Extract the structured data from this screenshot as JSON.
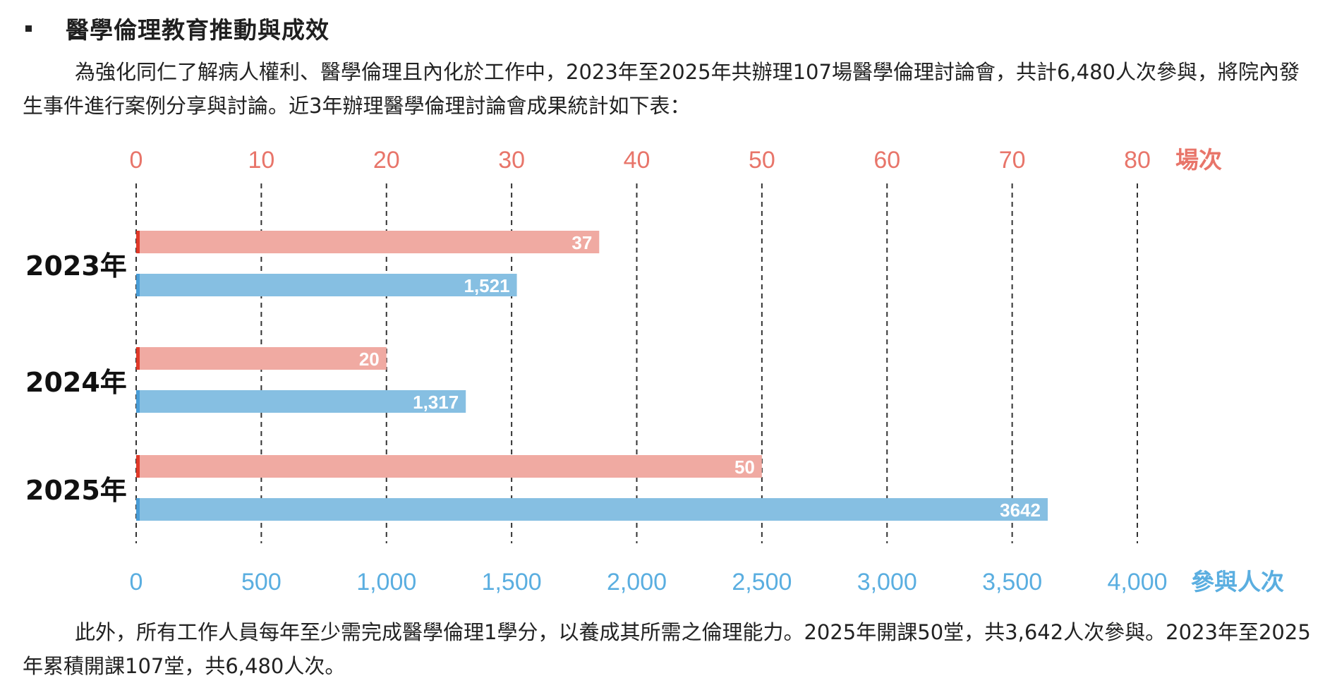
{
  "heading": "醫學倫理教育推動與成效",
  "intro": "為強化同仁了解病人權利、醫學倫理且內化於工作中，2023年至2025年共辦理107場醫學倫理討論會，共計6,480人次參與，將院內發生事件進行案例分享與討論。近3年辦理醫學倫理討論會成果統計如下表：",
  "footer": "此外，所有工作人員每年至少需完成醫學倫理1學分，以養成其所需之倫理能力。2025年開課50堂，共3,642人次參與。2023年至2025年累積開課107堂，共6,480人次。",
  "colors": {
    "sessions_bar": "#f0aaa2",
    "sessions_marker": "#e03a2a",
    "attendance_bar": "#86bfe2",
    "attendance_marker": "#4a9dd6",
    "top_axis": "#e8756a",
    "bottom_axis": "#5aaee0"
  },
  "chart_data": {
    "type": "bar",
    "orientation": "horizontal",
    "categories": [
      "2023年",
      "2024年",
      "2025年"
    ],
    "series": [
      {
        "axis": "top",
        "values": [
          37,
          20,
          50
        ],
        "value_labels": [
          "37",
          "20",
          "50"
        ]
      },
      {
        "axis": "bottom",
        "values": [
          1521,
          1317,
          3642
        ],
        "value_labels": [
          "1,521",
          "1,317",
          "3642"
        ]
      }
    ],
    "top_axis": {
      "unit": "場次",
      "ticks": [
        "0",
        "10",
        "20",
        "30",
        "40",
        "50",
        "60",
        "70",
        "80"
      ],
      "range": [
        0,
        80
      ]
    },
    "bottom_axis": {
      "unit": "參與人次",
      "ticks": [
        "0",
        "500",
        "1,000",
        "1,500",
        "2,000",
        "2,500",
        "3,000",
        "3,500",
        "4,000"
      ],
      "range": [
        0,
        4000
      ]
    },
    "grid": "dashed vertical"
  }
}
